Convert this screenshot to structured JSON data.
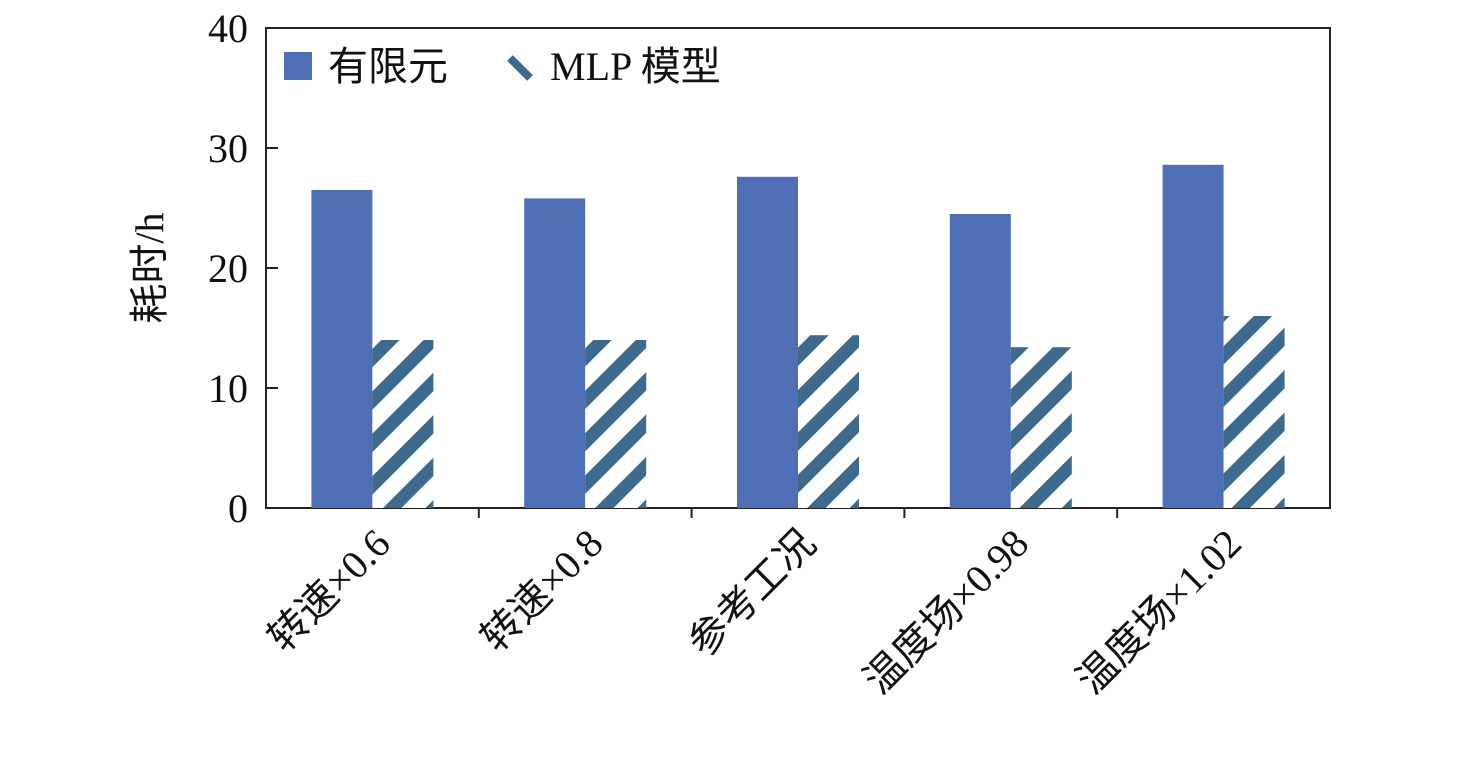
{
  "chart_data": {
    "type": "bar",
    "title": "",
    "xlabel": "",
    "ylabel": "耗时/h",
    "ylim": [
      0,
      40
    ],
    "yticks": [
      "0",
      "10",
      "20",
      "30",
      "40"
    ],
    "categories": [
      "转速×0.6",
      "转速×0.8",
      "参考工况",
      "温度场×0.98",
      "温度场×1.02"
    ],
    "series": [
      {
        "name": "有限元",
        "values": [
          26.5,
          25.8,
          27.6,
          24.5,
          28.6
        ],
        "color": "#4E6EB6",
        "pattern": "solid"
      },
      {
        "name": "MLP 模型",
        "values": [
          14.0,
          14.0,
          14.4,
          13.4,
          16.0
        ],
        "color": "#3E6A8E",
        "pattern": "diagonal-hatch"
      }
    ],
    "legend_position": "top-left",
    "grid": false,
    "frame": "box"
  }
}
